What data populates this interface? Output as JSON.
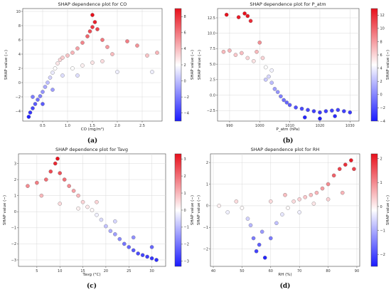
{
  "colors": {
    "low": "#1a1aff",
    "mid": "#ffffff",
    "high": "#e8101c",
    "grid": "#d9d9d9",
    "edge": "#666666"
  },
  "chart_data": [
    {
      "id": "a",
      "type": "scatter",
      "title": "SHAP dependence plot for CO",
      "xlabel": "CO (mg/m³)",
      "ylabel": "SHAP value (−)",
      "caption": "(a)",
      "xlim": [
        0.1,
        2.9
      ],
      "ylim": [
        -5.4,
        10.4
      ],
      "xticks": [
        0.5,
        1.0,
        1.5,
        2.0,
        2.5
      ],
      "xtick_labels": [
        "0.5",
        "1.0",
        "1.5",
        "2.0",
        "2.5"
      ],
      "yticks": [
        -4,
        -2,
        0,
        2,
        4,
        6,
        8,
        10
      ],
      "ytick_labels": [
        "−4",
        "−2",
        "0",
        "2",
        "4",
        "6",
        "8",
        "10"
      ],
      "clim": [
        -5,
        9
      ],
      "cbar_ticks": [
        -4,
        -2,
        0,
        2,
        4,
        6,
        8
      ],
      "cbar_tick_labels": [
        "−4",
        "−2",
        "0",
        "2",
        "4",
        "6",
        "8"
      ],
      "grid": true,
      "points": [
        [
          0.22,
          -4.8
        ],
        [
          0.25,
          -4.2
        ],
        [
          0.3,
          -3.6
        ],
        [
          0.35,
          -3.0
        ],
        [
          0.4,
          -2.4
        ],
        [
          0.45,
          -1.9
        ],
        [
          0.5,
          -1.3
        ],
        [
          0.55,
          -0.6
        ],
        [
          0.6,
          0.0
        ],
        [
          0.65,
          0.7
        ],
        [
          0.7,
          1.4
        ],
        [
          0.75,
          2.0
        ],
        [
          0.8,
          2.7
        ],
        [
          0.85,
          3.2
        ],
        [
          0.9,
          3.5
        ],
        [
          1.0,
          3.8
        ],
        [
          1.1,
          4.2
        ],
        [
          1.2,
          4.8
        ],
        [
          1.3,
          5.6
        ],
        [
          1.4,
          6.5
        ],
        [
          1.45,
          7.2
        ],
        [
          1.5,
          7.8
        ],
        [
          1.55,
          8.5
        ],
        [
          1.5,
          9.5
        ],
        [
          1.6,
          7.5
        ],
        [
          1.7,
          6.0
        ],
        [
          1.8,
          5.0
        ],
        [
          1.9,
          4.0
        ],
        [
          2.0,
          1.5
        ],
        [
          2.2,
          5.8
        ],
        [
          2.4,
          5.2
        ],
        [
          2.6,
          3.8
        ],
        [
          2.7,
          1.5
        ],
        [
          2.8,
          4.2
        ],
        [
          0.3,
          -2.0
        ],
        [
          0.5,
          -3.0
        ],
        [
          0.7,
          -1.0
        ],
        [
          0.9,
          1.0
        ],
        [
          1.1,
          2.0
        ],
        [
          1.3,
          2.4
        ],
        [
          1.5,
          2.8
        ],
        [
          1.7,
          3.0
        ],
        [
          1.2,
          1.0
        ]
      ]
    },
    {
      "id": "b",
      "type": "scatter",
      "title": "SHAP dependence plot for P_atm",
      "xlabel": "P_atm (hPa)",
      "ylabel": "SHAP value (−)",
      "caption": "(b)",
      "xlim": [
        986,
        1033
      ],
      "ylim": [
        -4.2,
        14.0
      ],
      "xticks": [
        990,
        1000,
        1010,
        1020,
        1030
      ],
      "xtick_labels": [
        "990",
        "1000",
        "1010",
        "1020",
        "1030"
      ],
      "yticks": [
        -2.5,
        0.0,
        2.5,
        5.0,
        7.5,
        10.0,
        12.5
      ],
      "ytick_labels": [
        "−2.5",
        "0.0",
        "2.5",
        "5.0",
        "7.5",
        "10.0",
        "12.5"
      ],
      "clim": [
        -4,
        13
      ],
      "cbar_ticks": [
        -4,
        -2,
        0,
        2,
        4,
        6,
        8,
        10,
        12
      ],
      "cbar_tick_labels": [
        "−4",
        "−2",
        "0",
        "2",
        "4",
        "6",
        "8",
        "10",
        "12"
      ],
      "grid": true,
      "points": [
        [
          989,
          13.0
        ],
        [
          993,
          12.6
        ],
        [
          995,
          13.2
        ],
        [
          996,
          12.8
        ],
        [
          997,
          12.0
        ],
        [
          988,
          7.0
        ],
        [
          990,
          7.2
        ],
        [
          992,
          6.5
        ],
        [
          994,
          6.8
        ],
        [
          996,
          6.0
        ],
        [
          998,
          5.5
        ],
        [
          999,
          7.0
        ],
        [
          1000,
          8.5
        ],
        [
          1001,
          6.0
        ],
        [
          1002,
          4.5
        ],
        [
          1003,
          3.0
        ],
        [
          1004,
          2.0
        ],
        [
          1005,
          1.0
        ],
        [
          1006,
          0.5
        ],
        [
          1007,
          -0.2
        ],
        [
          1008,
          -0.8
        ],
        [
          1009,
          -1.2
        ],
        [
          1010,
          -1.6
        ],
        [
          1012,
          -2.0
        ],
        [
          1014,
          -2.2
        ],
        [
          1016,
          -2.4
        ],
        [
          1018,
          -2.6
        ],
        [
          1020,
          -2.8
        ],
        [
          1022,
          -2.6
        ],
        [
          1024,
          -2.5
        ],
        [
          1026,
          -2.4
        ],
        [
          1028,
          -2.6
        ],
        [
          1030,
          -2.8
        ],
        [
          1015,
          -3.6
        ],
        [
          1020,
          -3.8
        ],
        [
          1025,
          -3.4
        ],
        [
          1004,
          4.0
        ],
        [
          1002,
          2.5
        ]
      ]
    },
    {
      "id": "c",
      "type": "scatter",
      "title": "SHAP dependence plot for Tavg",
      "xlabel": "Tavg (°C)",
      "ylabel": "SHAP value (−)",
      "caption": "(c)",
      "xlim": [
        1.0,
        33.0
      ],
      "ylim": [
        -3.4,
        3.6
      ],
      "xticks": [
        5,
        10,
        15,
        20,
        25,
        30
      ],
      "xtick_labels": [
        "5",
        "10",
        "15",
        "20",
        "25",
        "30"
      ],
      "yticks": [
        -3,
        -2,
        -1,
        0,
        1,
        2,
        3
      ],
      "ytick_labels": [
        "−3",
        "−2",
        "−1",
        "0",
        "1",
        "2",
        "3"
      ],
      "clim": [
        -3.3,
        3.3
      ],
      "cbar_ticks": [
        -3,
        -2,
        -1,
        0,
        1,
        2,
        3
      ],
      "cbar_tick_labels": [
        "−3",
        "−2",
        "−1",
        "0",
        "1",
        "2",
        "3"
      ],
      "grid": true,
      "points": [
        [
          3,
          1.6
        ],
        [
          5,
          1.8
        ],
        [
          7,
          2.0
        ],
        [
          8,
          2.5
        ],
        [
          9,
          3.0
        ],
        [
          9.5,
          3.3
        ],
        [
          10,
          2.4
        ],
        [
          11,
          2.0
        ],
        [
          12,
          1.6
        ],
        [
          13,
          1.3
        ],
        [
          14,
          1.0
        ],
        [
          15,
          0.6
        ],
        [
          16,
          0.3
        ],
        [
          17,
          0.1
        ],
        [
          18,
          -0.2
        ],
        [
          19,
          -0.5
        ],
        [
          20,
          -0.9
        ],
        [
          21,
          -1.2
        ],
        [
          22,
          -1.4
        ],
        [
          23,
          -1.7
        ],
        [
          24,
          -2.0
        ],
        [
          25,
          -2.2
        ],
        [
          26,
          -2.4
        ],
        [
          27,
          -2.6
        ],
        [
          28,
          -2.7
        ],
        [
          29,
          -2.8
        ],
        [
          30,
          -2.9
        ],
        [
          31,
          -3.0
        ],
        [
          6,
          1.0
        ],
        [
          10,
          0.5
        ],
        [
          14,
          0.2
        ],
        [
          18,
          0.6
        ],
        [
          22,
          -0.6
        ],
        [
          26,
          -1.6
        ],
        [
          30,
          -2.2
        ]
      ]
    },
    {
      "id": "d",
      "type": "scatter",
      "title": "SHAP dependence plot for RH",
      "xlabel": "RH (%)",
      "ylabel": "SHAP value (−)",
      "caption": "(d)",
      "xlim": [
        39,
        91
      ],
      "ylim": [
        -2.8,
        2.4
      ],
      "xticks": [
        40,
        50,
        60,
        70,
        80,
        90
      ],
      "xtick_labels": [
        "40",
        "50",
        "60",
        "70",
        "80",
        "90"
      ],
      "yticks": [
        -2,
        -1,
        0,
        1,
        2
      ],
      "ytick_labels": [
        "−2",
        "−1",
        "0",
        "1",
        "2"
      ],
      "clim": [
        -2.5,
        2.2
      ],
      "cbar_ticks": [
        -2,
        -1,
        0,
        1,
        2
      ],
      "cbar_tick_labels": [
        "−2",
        "−1",
        "0",
        "1",
        "2"
      ],
      "grid": true,
      "points": [
        [
          42,
          0.0
        ],
        [
          45,
          -0.3
        ],
        [
          48,
          0.2
        ],
        [
          50,
          -0.1
        ],
        [
          52,
          -0.6
        ],
        [
          54,
          -1.5
        ],
        [
          55,
          -2.1
        ],
        [
          56,
          -1.8
        ],
        [
          58,
          -2.4
        ],
        [
          60,
          -1.5
        ],
        [
          62,
          -0.8
        ],
        [
          64,
          -0.4
        ],
        [
          66,
          -0.1
        ],
        [
          68,
          0.2
        ],
        [
          70,
          0.3
        ],
        [
          72,
          0.4
        ],
        [
          74,
          0.5
        ],
        [
          76,
          0.6
        ],
        [
          78,
          0.8
        ],
        [
          80,
          1.0
        ],
        [
          82,
          1.4
        ],
        [
          84,
          1.7
        ],
        [
          86,
          1.9
        ],
        [
          88,
          2.1
        ],
        [
          89,
          1.7
        ],
        [
          60,
          0.2
        ],
        [
          65,
          0.5
        ],
        [
          70,
          -0.3
        ],
        [
          75,
          0.1
        ],
        [
          80,
          0.3
        ],
        [
          85,
          0.6
        ],
        [
          53,
          -0.9
        ],
        [
          57,
          -1.2
        ]
      ]
    }
  ]
}
